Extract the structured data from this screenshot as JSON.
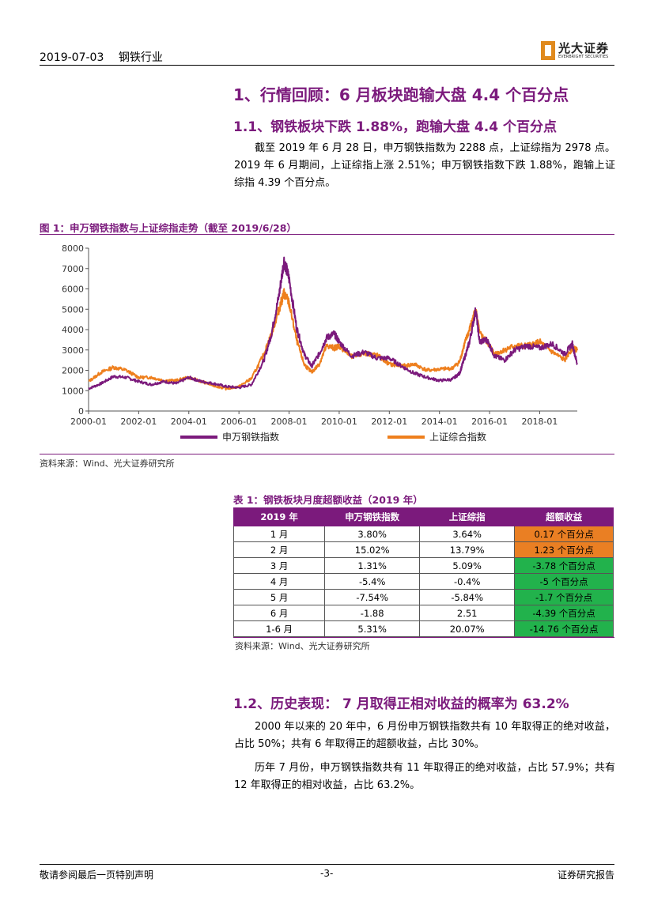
{
  "header": {
    "date": "2019-07-03",
    "industry": "钢铁行业"
  },
  "logo": {
    "cn": "光大证券",
    "en": "EVERBRIGHT SECURITIES"
  },
  "section1": {
    "title": "1、行情回顾：6 月板块跑输大盘 4.4 个百分点"
  },
  "section1_1": {
    "title": "1.1、钢铁板块下跌 1.88%，跑输大盘 4.4 个百分点",
    "paragraph": "截至 2019 年 6 月 28 日，申万钢铁指数为 2288 点，上证综指为 2978 点。2019 年 6 月期间，上证综指上涨 2.51%；申万钢铁指数下跌 1.88%，跑输上证综指 4.39 个百分点。"
  },
  "figure1": {
    "title": "图 1：申万钢铁指数与上证综指走势（截至 2019/6/28）",
    "source": "资料来源：Wind、光大证券研究所"
  },
  "chart_data": {
    "type": "line",
    "x_ticks": [
      "2000-01",
      "2002-01",
      "2004-01",
      "2006-01",
      "2008-01",
      "2010-01",
      "2012-01",
      "2014-01",
      "2016-01",
      "2018-01"
    ],
    "ylim": [
      0,
      8000
    ],
    "y_ticks": [
      "0",
      "1000",
      "2000",
      "3000",
      "4000",
      "5000",
      "6000",
      "7000",
      "8000"
    ],
    "grid": false,
    "legend_position": "bottom",
    "colors": {
      "steel": "#7b1a7c",
      "sse": "#ee7f1d"
    },
    "series": [
      {
        "name": "申万钢铁指数",
        "x": [
          2000.0,
          2000.5,
          2001.0,
          2001.5,
          2002.0,
          2002.5,
          2003.0,
          2003.5,
          2004.0,
          2004.5,
          2005.0,
          2005.5,
          2006.0,
          2006.5,
          2007.0,
          2007.3,
          2007.6,
          2007.8,
          2008.0,
          2008.3,
          2008.6,
          2008.9,
          2009.2,
          2009.5,
          2009.8,
          2010.0,
          2010.5,
          2011.0,
          2011.5,
          2012.0,
          2012.5,
          2013.0,
          2013.5,
          2014.0,
          2014.5,
          2014.8,
          2015.0,
          2015.2,
          2015.45,
          2015.6,
          2015.9,
          2016.2,
          2016.6,
          2017.0,
          2017.5,
          2018.0,
          2018.5,
          2019.0,
          2019.3,
          2019.5
        ],
        "values": [
          1100,
          1350,
          1700,
          1650,
          1450,
          1300,
          1450,
          1350,
          1650,
          1450,
          1350,
          1200,
          1150,
          1300,
          2500,
          3800,
          5700,
          7400,
          6500,
          4100,
          2800,
          2200,
          2800,
          3600,
          3800,
          3400,
          2700,
          2900,
          2600,
          2600,
          2200,
          1850,
          1650,
          1500,
          1550,
          1850,
          2600,
          3400,
          5000,
          3400,
          3500,
          2700,
          2500,
          3000,
          3200,
          3100,
          3300,
          2800,
          3300,
          2290
        ]
      },
      {
        "name": "上证综合指数",
        "x": [
          2000.0,
          2000.5,
          2001.0,
          2001.5,
          2002.0,
          2002.5,
          2003.0,
          2003.5,
          2004.0,
          2004.5,
          2005.0,
          2005.5,
          2006.0,
          2006.5,
          2007.0,
          2007.3,
          2007.6,
          2007.8,
          2008.0,
          2008.3,
          2008.6,
          2008.9,
          2009.2,
          2009.5,
          2009.8,
          2010.0,
          2010.5,
          2011.0,
          2011.5,
          2012.0,
          2012.5,
          2013.0,
          2013.5,
          2014.0,
          2014.5,
          2014.8,
          2015.0,
          2015.2,
          2015.45,
          2015.6,
          2015.9,
          2016.2,
          2016.6,
          2017.0,
          2017.5,
          2018.0,
          2018.5,
          2019.0,
          2019.3,
          2019.5
        ],
        "values": [
          1450,
          1900,
          2150,
          2000,
          1650,
          1650,
          1500,
          1500,
          1650,
          1450,
          1250,
          1100,
          1200,
          1600,
          2800,
          3800,
          5000,
          5800,
          5300,
          3500,
          2300,
          1900,
          2300,
          3200,
          3100,
          3200,
          2650,
          2850,
          2750,
          2300,
          2200,
          2300,
          2000,
          2050,
          2100,
          2400,
          3300,
          4000,
          5000,
          3800,
          3400,
          2800,
          3000,
          3200,
          3200,
          3400,
          2900,
          2500,
          3100,
          2980
        ]
      }
    ]
  },
  "table1": {
    "title": "表 1：钢铁板块月度超额收益（2019 年）",
    "headers": [
      "2019 年",
      "申万钢铁指数",
      "上证综指",
      "超额收益"
    ],
    "rows": [
      [
        "1 月",
        "3.80%",
        "3.64%",
        "0.17 个百分点"
      ],
      [
        "2 月",
        "15.02%",
        "13.79%",
        "1.23 个百分点"
      ],
      [
        "3 月",
        "1.31%",
        "5.09%",
        "-3.78 个百分点"
      ],
      [
        "4 月",
        "-5.4%",
        "-0.4%",
        "-5 个百分点"
      ],
      [
        "5 月",
        "-7.54%",
        "-5.84%",
        "-1.7 个百分点"
      ],
      [
        "6 月",
        "-1.88",
        "2.51",
        "-4.39 个百分点"
      ],
      [
        "1-6 月",
        "5.31%",
        "20.07%",
        "-14.76 个百分点"
      ]
    ],
    "row_signs": [
      "pos",
      "pos",
      "neg",
      "neg",
      "neg",
      "neg",
      "neg"
    ],
    "source": "资料来源：Wind、光大证券研究所"
  },
  "section1_2": {
    "title": "1.2、历史表现：  7 月取得正相对收益的概率为 63.2%",
    "paragraph1": "2000 年以来的 20 年中，6 月份申万钢铁指数共有 10 年取得正的绝对收益，占比 50%；共有 6 年取得正的超额收益，占比 30%。",
    "paragraph2": "历年 7 月份，申万钢铁指数共有 11 年取得正的绝对收益，占比 57.9%；共有 12 年取得正的相对收益，占比 63.2%。"
  },
  "footer": {
    "left": "敬请参阅最后一页特别声明",
    "page": "-3-",
    "right": "证券研究报告"
  }
}
